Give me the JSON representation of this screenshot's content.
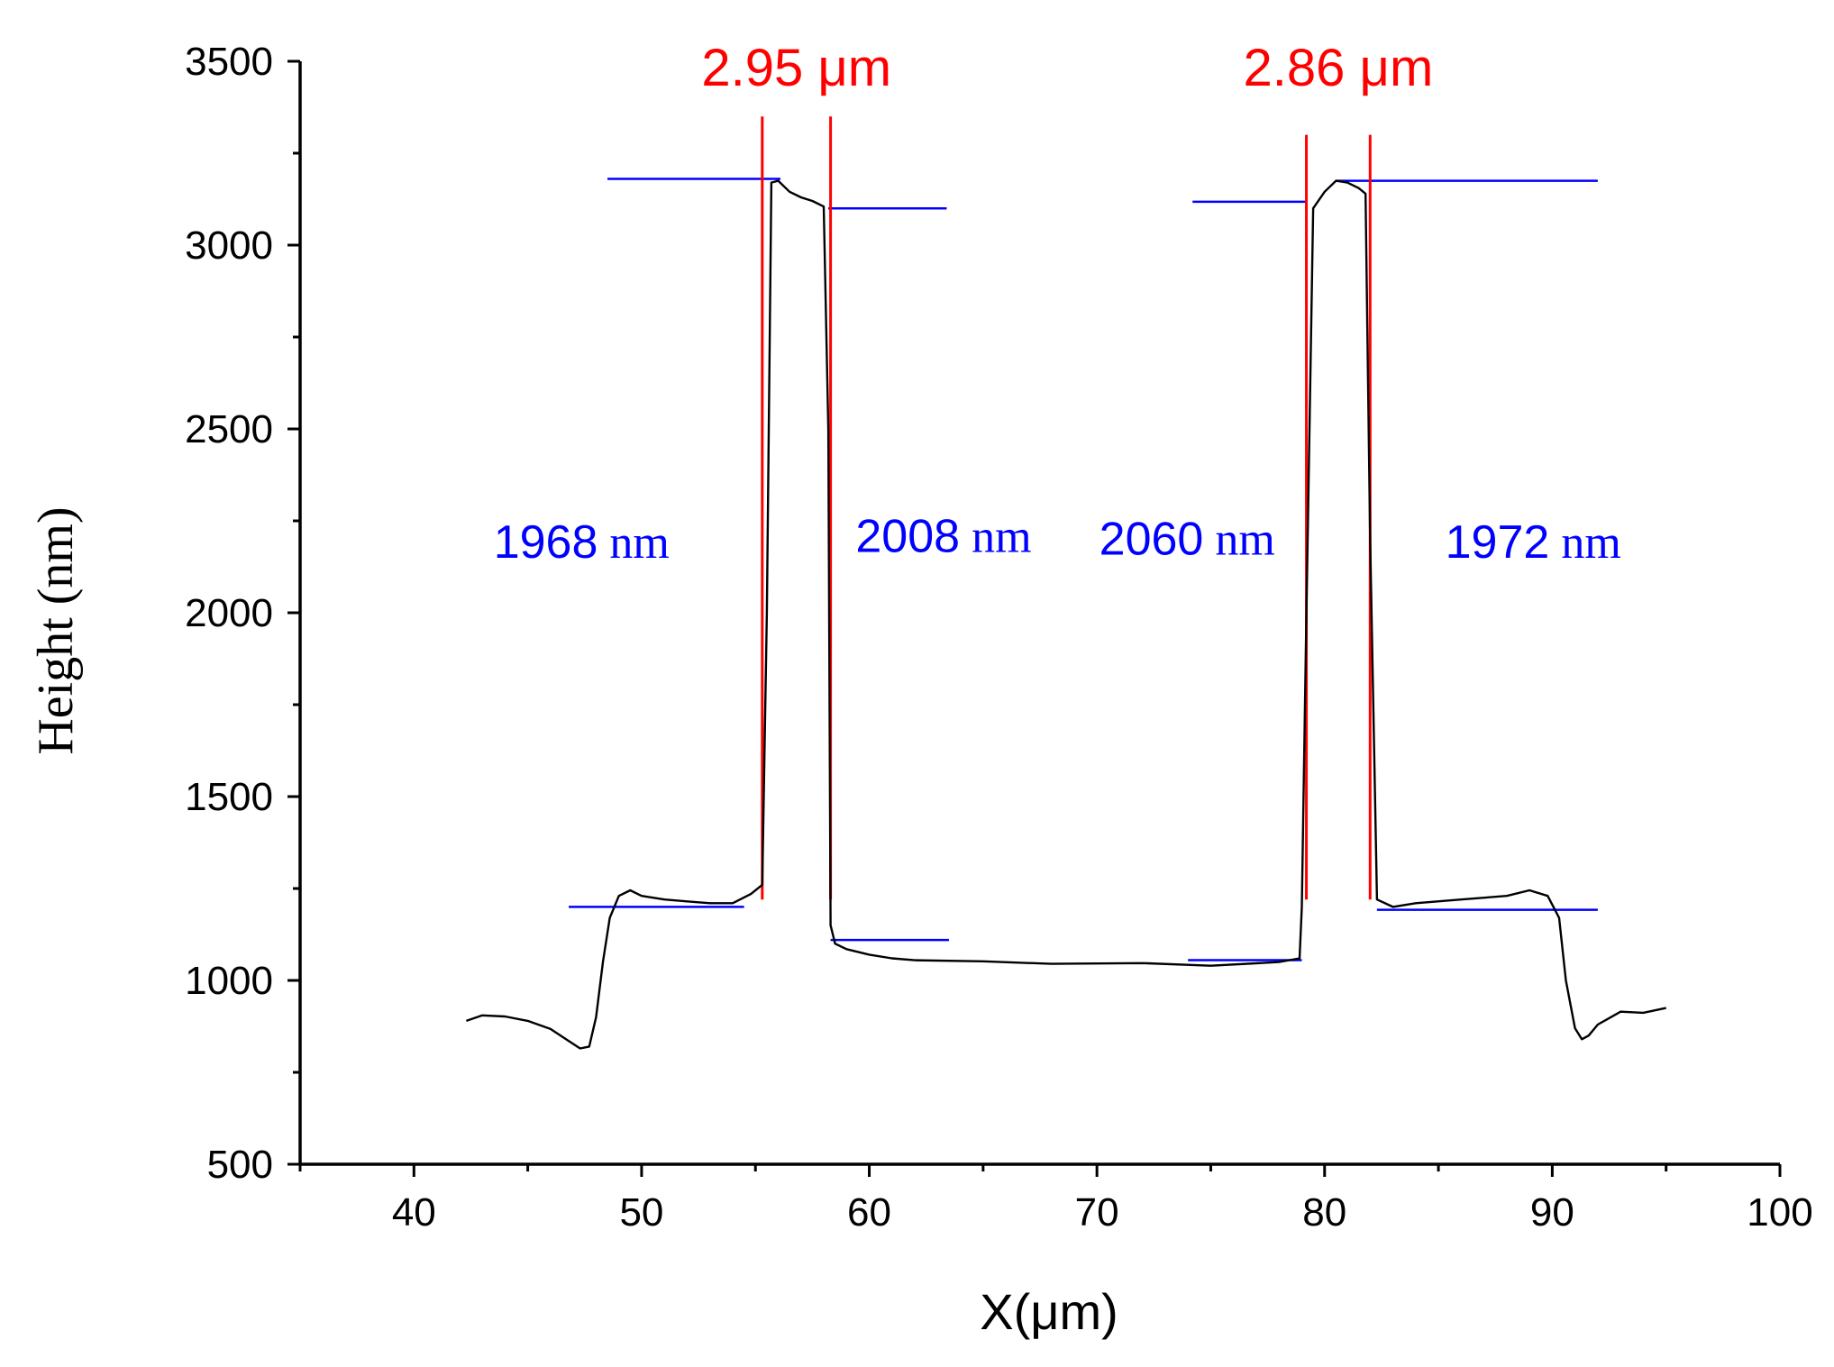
{
  "chart_data": {
    "type": "line",
    "title": "",
    "xlabel": "X(μm)",
    "ylabel": "Height (nm)",
    "xlim": [
      35,
      100
    ],
    "ylim": [
      500,
      3500
    ],
    "x_major_ticks": [
      40,
      50,
      60,
      70,
      80,
      90,
      100
    ],
    "x_minor_ticks": [
      35,
      45,
      55,
      65,
      75,
      85,
      95
    ],
    "y_major_ticks": [
      500,
      1000,
      1500,
      2000,
      2500,
      3000,
      3500
    ],
    "y_minor_ticks": [
      750,
      1250,
      1750,
      2250,
      2750,
      3250
    ],
    "x_tick_labels": [
      "40",
      "50",
      "60",
      "70",
      "80",
      "90",
      "100"
    ],
    "y_tick_labels": [
      "500",
      "1000",
      "1500",
      "2000",
      "2500",
      "3000",
      "3500"
    ],
    "colors": {
      "profile": "#000000",
      "width_marker": "#ff0000",
      "level_line": "#0000ff",
      "axis": "#000000"
    },
    "series": [
      {
        "name": "profile",
        "x": [
          42.3,
          43,
          44,
          45,
          46,
          46.8,
          47.3,
          47.7,
          48.0,
          48.3,
          48.6,
          49.0,
          49.5,
          50,
          51,
          52,
          53,
          54,
          54.8,
          55.3,
          55.5,
          55.7,
          56.0,
          56.5,
          57.0,
          57.5,
          58.0,
          58.2,
          58.3,
          58.5,
          59,
          60,
          61,
          62,
          65,
          68,
          72,
          75,
          78,
          78.9,
          79.0,
          79.2,
          79.5,
          80,
          80.5,
          81,
          81.5,
          81.8,
          82.0,
          82.3,
          83,
          84,
          86,
          88,
          89,
          89.8,
          90.3,
          90.6,
          91.0,
          91.3,
          91.6,
          92,
          93,
          94,
          95
        ],
        "y": [
          890,
          905,
          902,
          890,
          868,
          835,
          815,
          820,
          900,
          1050,
          1170,
          1230,
          1245,
          1230,
          1220,
          1215,
          1210,
          1210,
          1235,
          1260,
          2000,
          3170,
          3175,
          3145,
          3130,
          3120,
          3105,
          2500,
          1150,
          1100,
          1085,
          1070,
          1060,
          1055,
          1052,
          1045,
          1047,
          1040,
          1050,
          1060,
          1200,
          2000,
          3100,
          3145,
          3175,
          3170,
          3155,
          3140,
          2200,
          1220,
          1200,
          1210,
          1220,
          1230,
          1245,
          1230,
          1170,
          1000,
          870,
          840,
          850,
          880,
          915,
          912,
          925
        ]
      }
    ],
    "width_markers": [
      {
        "x": [
          55.3,
          58.3
        ],
        "label": "2.95 μm"
      },
      {
        "x": [
          79.2,
          82.0
        ],
        "label": "2.86 μm"
      }
    ],
    "level_lines": [
      {
        "x1": 48.5,
        "x2": 56.1,
        "y": 3180
      },
      {
        "x1": 58.2,
        "x2": 63.4,
        "y": 3100
      },
      {
        "x1": 46.8,
        "x2": 54.5,
        "y": 1200
      },
      {
        "x1": 58.3,
        "x2": 63.5,
        "y": 1110
      },
      {
        "x1": 74.2,
        "x2": 79.2,
        "y": 3118
      },
      {
        "x1": 80.5,
        "x2": 92.0,
        "y": 3175
      },
      {
        "x1": 74.0,
        "x2": 79.0,
        "y": 1055
      },
      {
        "x1": 82.3,
        "x2": 92.0,
        "y": 1192
      }
    ],
    "height_annotations": [
      {
        "value": "1968",
        "unit": "nm",
        "x": 43.5,
        "y": 2150
      },
      {
        "value": "2008",
        "unit": "nm",
        "x": 59.4,
        "y": 2165
      },
      {
        "value": "2060",
        "unit": "nm",
        "x": 70.1,
        "y": 2158
      },
      {
        "value": "1972",
        "unit": "nm",
        "x": 85.3,
        "y": 2150
      }
    ]
  }
}
